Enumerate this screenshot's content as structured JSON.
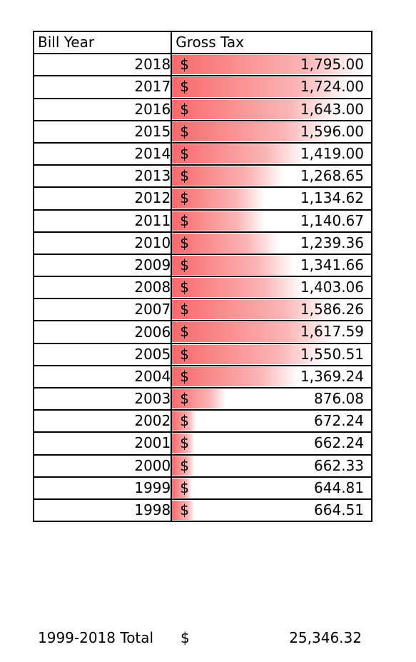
{
  "chart_data": {
    "type": "table",
    "columns": [
      "Bill Year",
      "Gross Tax"
    ],
    "currency_symbol": "$",
    "bar_color": "#f8696b",
    "rows": [
      {
        "year": "2018",
        "value": 1795.0,
        "display": "1,795.00"
      },
      {
        "year": "2017",
        "value": 1724.0,
        "display": "1,724.00"
      },
      {
        "year": "2016",
        "value": 1643.0,
        "display": "1,643.00"
      },
      {
        "year": "2015",
        "value": 1596.0,
        "display": "1,596.00"
      },
      {
        "year": "2014",
        "value": 1419.0,
        "display": "1,419.00"
      },
      {
        "year": "2013",
        "value": 1268.65,
        "display": "1,268.65"
      },
      {
        "year": "2012",
        "value": 1134.62,
        "display": "1,134.62"
      },
      {
        "year": "2011",
        "value": 1140.67,
        "display": "1,140.67"
      },
      {
        "year": "2010",
        "value": 1239.36,
        "display": "1,239.36"
      },
      {
        "year": "2009",
        "value": 1341.66,
        "display": "1,341.66"
      },
      {
        "year": "2008",
        "value": 1403.06,
        "display": "1,403.06"
      },
      {
        "year": "2007",
        "value": 1586.26,
        "display": "1,586.26"
      },
      {
        "year": "2006",
        "value": 1617.59,
        "display": "1,617.59"
      },
      {
        "year": "2005",
        "value": 1550.51,
        "display": "1,550.51"
      },
      {
        "year": "2004",
        "value": 1369.24,
        "display": "1,369.24"
      },
      {
        "year": "2003",
        "value": 876.08,
        "display": "876.08"
      },
      {
        "year": "2002",
        "value": 672.24,
        "display": "672.24"
      },
      {
        "year": "2001",
        "value": 662.24,
        "display": "662.24"
      },
      {
        "year": "2000",
        "value": 662.33,
        "display": "662.33"
      },
      {
        "year": "1999",
        "value": 644.81,
        "display": "644.81"
      },
      {
        "year": "1998",
        "value": 664.51,
        "display": "664.51"
      }
    ],
    "total": {
      "label": "1999-2018 Total",
      "currency_symbol": "$",
      "value": 25346.32,
      "display": "25,346.32"
    }
  }
}
